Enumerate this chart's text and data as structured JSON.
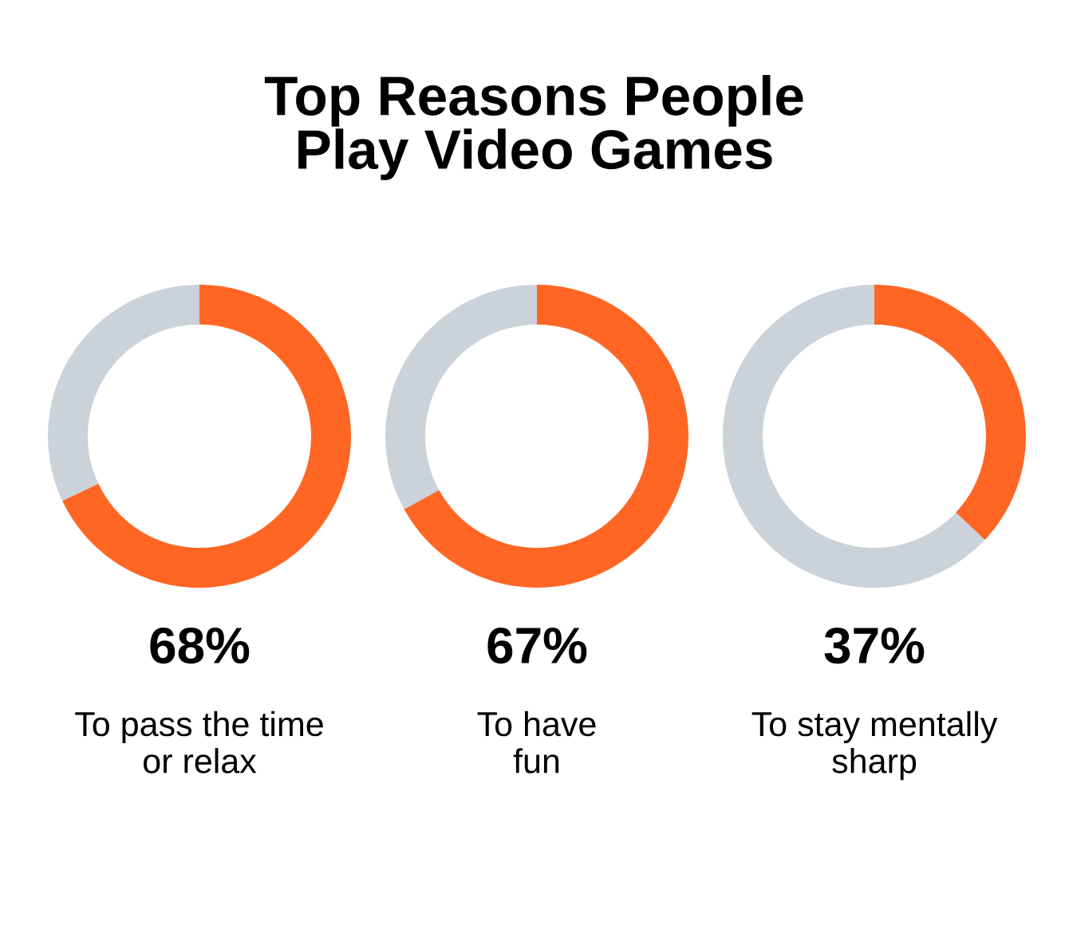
{
  "chart_data": [
    {
      "type": "donut",
      "title": "Top Reasons People\nPlay Video Games",
      "xlabel": "To pass the time\nor relax",
      "categories": [
        null,
        null
      ],
      "values": [
        68,
        32
      ],
      "colors": [
        "#ff6624",
        "#cbd2da"
      ],
      "annotations": [
        "68%"
      ]
    },
    {
      "type": "donut",
      "xlabel": "To have\nfun",
      "categories": [
        null,
        null
      ],
      "values": [
        67,
        33
      ],
      "colors": [
        "#ff6624",
        "#cbd2da"
      ],
      "annotations": [
        "67%"
      ]
    },
    {
      "type": "donut",
      "xlabel": "To stay mentally\nsharp",
      "categories": [
        null,
        null
      ],
      "values": [
        37,
        63
      ],
      "colors": [
        "#ff6624",
        "#cbd2da"
      ],
      "annotations": [
        "37%"
      ]
    }
  ]
}
